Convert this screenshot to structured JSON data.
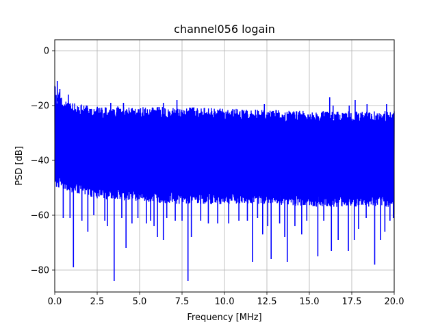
{
  "chart_data": {
    "type": "line",
    "title": "channel056 logain",
    "xlabel": "Frequency [MHz]",
    "ylabel": "PSD [dB]",
    "xlim": [
      0,
      20
    ],
    "ylim": [
      -88,
      4
    ],
    "xticks": [
      0.0,
      2.5,
      5.0,
      7.5,
      10.0,
      12.5,
      15.0,
      17.5,
      20.0
    ],
    "xtick_labels": [
      "0.0",
      "2.5",
      "5.0",
      "7.5",
      "10.0",
      "12.5",
      "15.0",
      "17.5",
      "20.0"
    ],
    "yticks": [
      0,
      -20,
      -40,
      -60,
      -80
    ],
    "ytick_labels": [
      "0",
      "−20",
      "−40",
      "−60",
      "−80"
    ],
    "grid": true,
    "legend": "none",
    "series": [
      {
        "color": "#0000ff",
        "envelope_upper": [
          [
            0.0,
            -11
          ],
          [
            0.1,
            -17
          ],
          [
            0.2,
            -14
          ],
          [
            0.4,
            -17
          ],
          [
            0.6,
            -18
          ],
          [
            1.0,
            -19
          ],
          [
            1.5,
            -19.5
          ],
          [
            2.0,
            -20
          ],
          [
            3.0,
            -20.5
          ],
          [
            4.0,
            -20
          ],
          [
            5.0,
            -20.5
          ],
          [
            7.5,
            -20.5
          ],
          [
            10.0,
            -21
          ],
          [
            12.5,
            -21.5
          ],
          [
            15.0,
            -22
          ],
          [
            17.5,
            -22
          ],
          [
            20.0,
            -22
          ]
        ],
        "envelope_lower": [
          [
            0.0,
            -50
          ],
          [
            2.5,
            -54
          ],
          [
            5.0,
            -55
          ],
          [
            7.5,
            -56
          ],
          [
            10.0,
            -56
          ],
          [
            12.5,
            -56
          ],
          [
            15.0,
            -57
          ],
          [
            17.5,
            -57
          ],
          [
            20.0,
            -57
          ]
        ],
        "band_upper": [
          [
            0.0,
            -26
          ],
          [
            20.0,
            -30
          ]
        ],
        "band_lower": [
          [
            0.0,
            -44
          ],
          [
            20.0,
            -47
          ]
        ],
        "spikes_up": [
          [
            0.15,
            -11
          ],
          [
            0.3,
            -14
          ],
          [
            0.8,
            -16
          ],
          [
            3.3,
            -19
          ],
          [
            4.05,
            -19
          ],
          [
            6.4,
            -19
          ],
          [
            7.2,
            -18
          ],
          [
            12.35,
            -19.5
          ],
          [
            16.2,
            -17
          ],
          [
            16.4,
            -20
          ],
          [
            17.35,
            -20
          ],
          [
            17.7,
            -18
          ],
          [
            18.4,
            -19.5
          ],
          [
            19.55,
            -19.5
          ]
        ],
        "spikes_down": [
          [
            0.5,
            -61
          ],
          [
            0.9,
            -61
          ],
          [
            1.1,
            -79
          ],
          [
            1.6,
            -62
          ],
          [
            1.95,
            -66
          ],
          [
            2.3,
            -60
          ],
          [
            2.95,
            -62
          ],
          [
            3.1,
            -64
          ],
          [
            3.5,
            -84
          ],
          [
            3.95,
            -61
          ],
          [
            4.2,
            -72
          ],
          [
            4.55,
            -63
          ],
          [
            4.9,
            -61
          ],
          [
            5.4,
            -63
          ],
          [
            5.65,
            -62
          ],
          [
            5.85,
            -64
          ],
          [
            6.05,
            -68
          ],
          [
            6.4,
            -69
          ],
          [
            6.6,
            -61
          ],
          [
            7.1,
            -62
          ],
          [
            7.5,
            -62
          ],
          [
            7.85,
            -84
          ],
          [
            8.05,
            -68
          ],
          [
            8.6,
            -62
          ],
          [
            9.05,
            -63
          ],
          [
            9.6,
            -63
          ],
          [
            10.25,
            -63
          ],
          [
            10.85,
            -62
          ],
          [
            11.35,
            -62
          ],
          [
            11.65,
            -77
          ],
          [
            11.95,
            -61
          ],
          [
            12.25,
            -67
          ],
          [
            12.55,
            -64
          ],
          [
            12.75,
            -76
          ],
          [
            13.25,
            -63
          ],
          [
            13.55,
            -68
          ],
          [
            13.7,
            -77
          ],
          [
            14.15,
            -64
          ],
          [
            14.55,
            -67
          ],
          [
            14.85,
            -62
          ],
          [
            15.5,
            -75
          ],
          [
            15.85,
            -62
          ],
          [
            16.3,
            -73
          ],
          [
            16.7,
            -69
          ],
          [
            17.3,
            -73
          ],
          [
            17.65,
            -69
          ],
          [
            17.9,
            -65
          ],
          [
            18.35,
            -61
          ],
          [
            18.85,
            -78
          ],
          [
            19.2,
            -69
          ],
          [
            19.45,
            -66
          ],
          [
            19.75,
            -62
          ],
          [
            19.95,
            -61
          ]
        ]
      }
    ]
  }
}
